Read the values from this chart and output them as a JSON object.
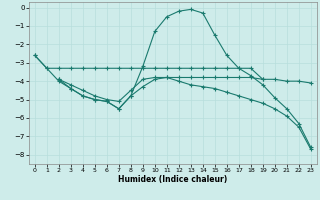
{
  "title": "",
  "xlabel": "Humidex (Indice chaleur)",
  "bg_color": "#ceecea",
  "grid_color": "#b8dedd",
  "line_color": "#1a7a6e",
  "xlim": [
    -0.5,
    23.5
  ],
  "ylim": [
    -8.5,
    0.3
  ],
  "xticks": [
    0,
    1,
    2,
    3,
    4,
    5,
    6,
    7,
    8,
    9,
    10,
    11,
    12,
    13,
    14,
    15,
    16,
    17,
    18,
    19,
    20,
    21,
    22,
    23
  ],
  "yticks": [
    0,
    -1,
    -2,
    -3,
    -4,
    -5,
    -6,
    -7,
    -8
  ],
  "line1_x": [
    0,
    1,
    2,
    3,
    4,
    5,
    6,
    7,
    8,
    9,
    10,
    11,
    12,
    13,
    14,
    15,
    16,
    17,
    18,
    19
  ],
  "line1_y": [
    -2.6,
    -3.3,
    -3.3,
    -3.3,
    -3.3,
    -3.3,
    -3.3,
    -3.3,
    -3.3,
    -3.3,
    -3.3,
    -3.3,
    -3.3,
    -3.3,
    -3.3,
    -3.3,
    -3.3,
    -3.3,
    -3.3,
    -3.9
  ],
  "line2_x": [
    2,
    3,
    4,
    5,
    6,
    7,
    8,
    9,
    10,
    11,
    12,
    13,
    14,
    15,
    16,
    17,
    18,
    19,
    20,
    21,
    22,
    23
  ],
  "line2_y": [
    -3.9,
    -4.2,
    -4.5,
    -4.8,
    -5.0,
    -5.1,
    -4.5,
    -3.9,
    -3.8,
    -3.8,
    -3.8,
    -3.8,
    -3.8,
    -3.8,
    -3.8,
    -3.8,
    -3.8,
    -3.9,
    -3.9,
    -4.0,
    -4.0,
    -4.1
  ],
  "line3_x": [
    2,
    3,
    4,
    5,
    6,
    7,
    8,
    9,
    10,
    11,
    12,
    13,
    14,
    15,
    16,
    17,
    18,
    19,
    20,
    21,
    22,
    23
  ],
  "line3_y": [
    -3.9,
    -4.4,
    -4.8,
    -5.0,
    -5.1,
    -5.5,
    -4.8,
    -4.3,
    -3.9,
    -3.8,
    -4.0,
    -4.2,
    -4.3,
    -4.4,
    -4.6,
    -4.8,
    -5.0,
    -5.2,
    -5.5,
    -5.9,
    -6.5,
    -7.7
  ],
  "line4_x": [
    0,
    1,
    2,
    3,
    4,
    5,
    6,
    7,
    8,
    9,
    10,
    11,
    12,
    13,
    14,
    15,
    16,
    17,
    18,
    19,
    20,
    21,
    22,
    23
  ],
  "line4_y": [
    -2.6,
    -3.3,
    -4.0,
    -4.4,
    -4.8,
    -5.0,
    -5.1,
    -5.5,
    -4.8,
    -3.2,
    -1.3,
    -0.5,
    -0.2,
    -0.1,
    -0.3,
    -1.5,
    -2.6,
    -3.3,
    -3.7,
    -4.2,
    -4.9,
    -5.5,
    -6.3,
    -7.6
  ]
}
